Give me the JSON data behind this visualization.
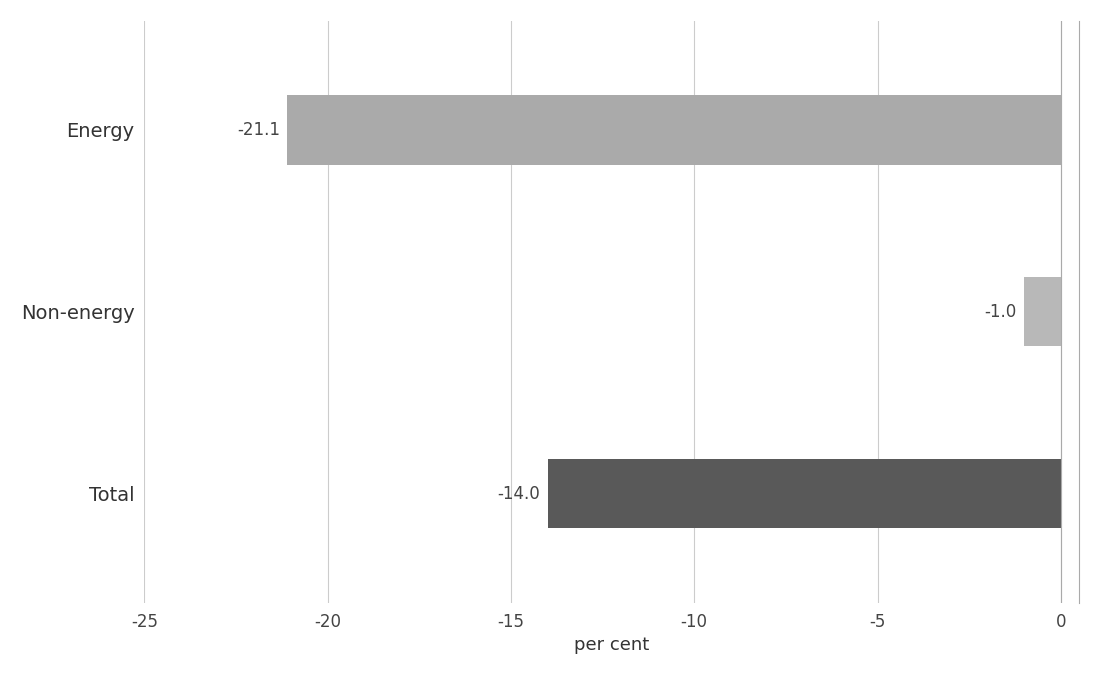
{
  "categories": [
    "Energy",
    "Non-energy",
    "Total"
  ],
  "values": [
    -21.1,
    -1.0,
    -14.0
  ],
  "bar_colors": [
    "#aaaaaa",
    "#b8b8b8",
    "#595959"
  ],
  "xlim": [
    -25,
    0.5
  ],
  "xticks": [
    -25,
    -20,
    -15,
    -10,
    -5,
    0
  ],
  "xtick_labels": [
    "-25",
    "-20",
    "-15",
    "-10",
    "-5",
    "0"
  ],
  "xlabel": "per cent",
  "background_color": "#ffffff",
  "grid_color": "#cccccc",
  "label_fontsize": 13,
  "tick_fontsize": 12,
  "bar_height": 0.38,
  "value_labels": [
    "-21.1",
    "-1.0",
    "-14.0"
  ],
  "label_offsets": [
    0.3,
    0.3,
    0.3
  ]
}
